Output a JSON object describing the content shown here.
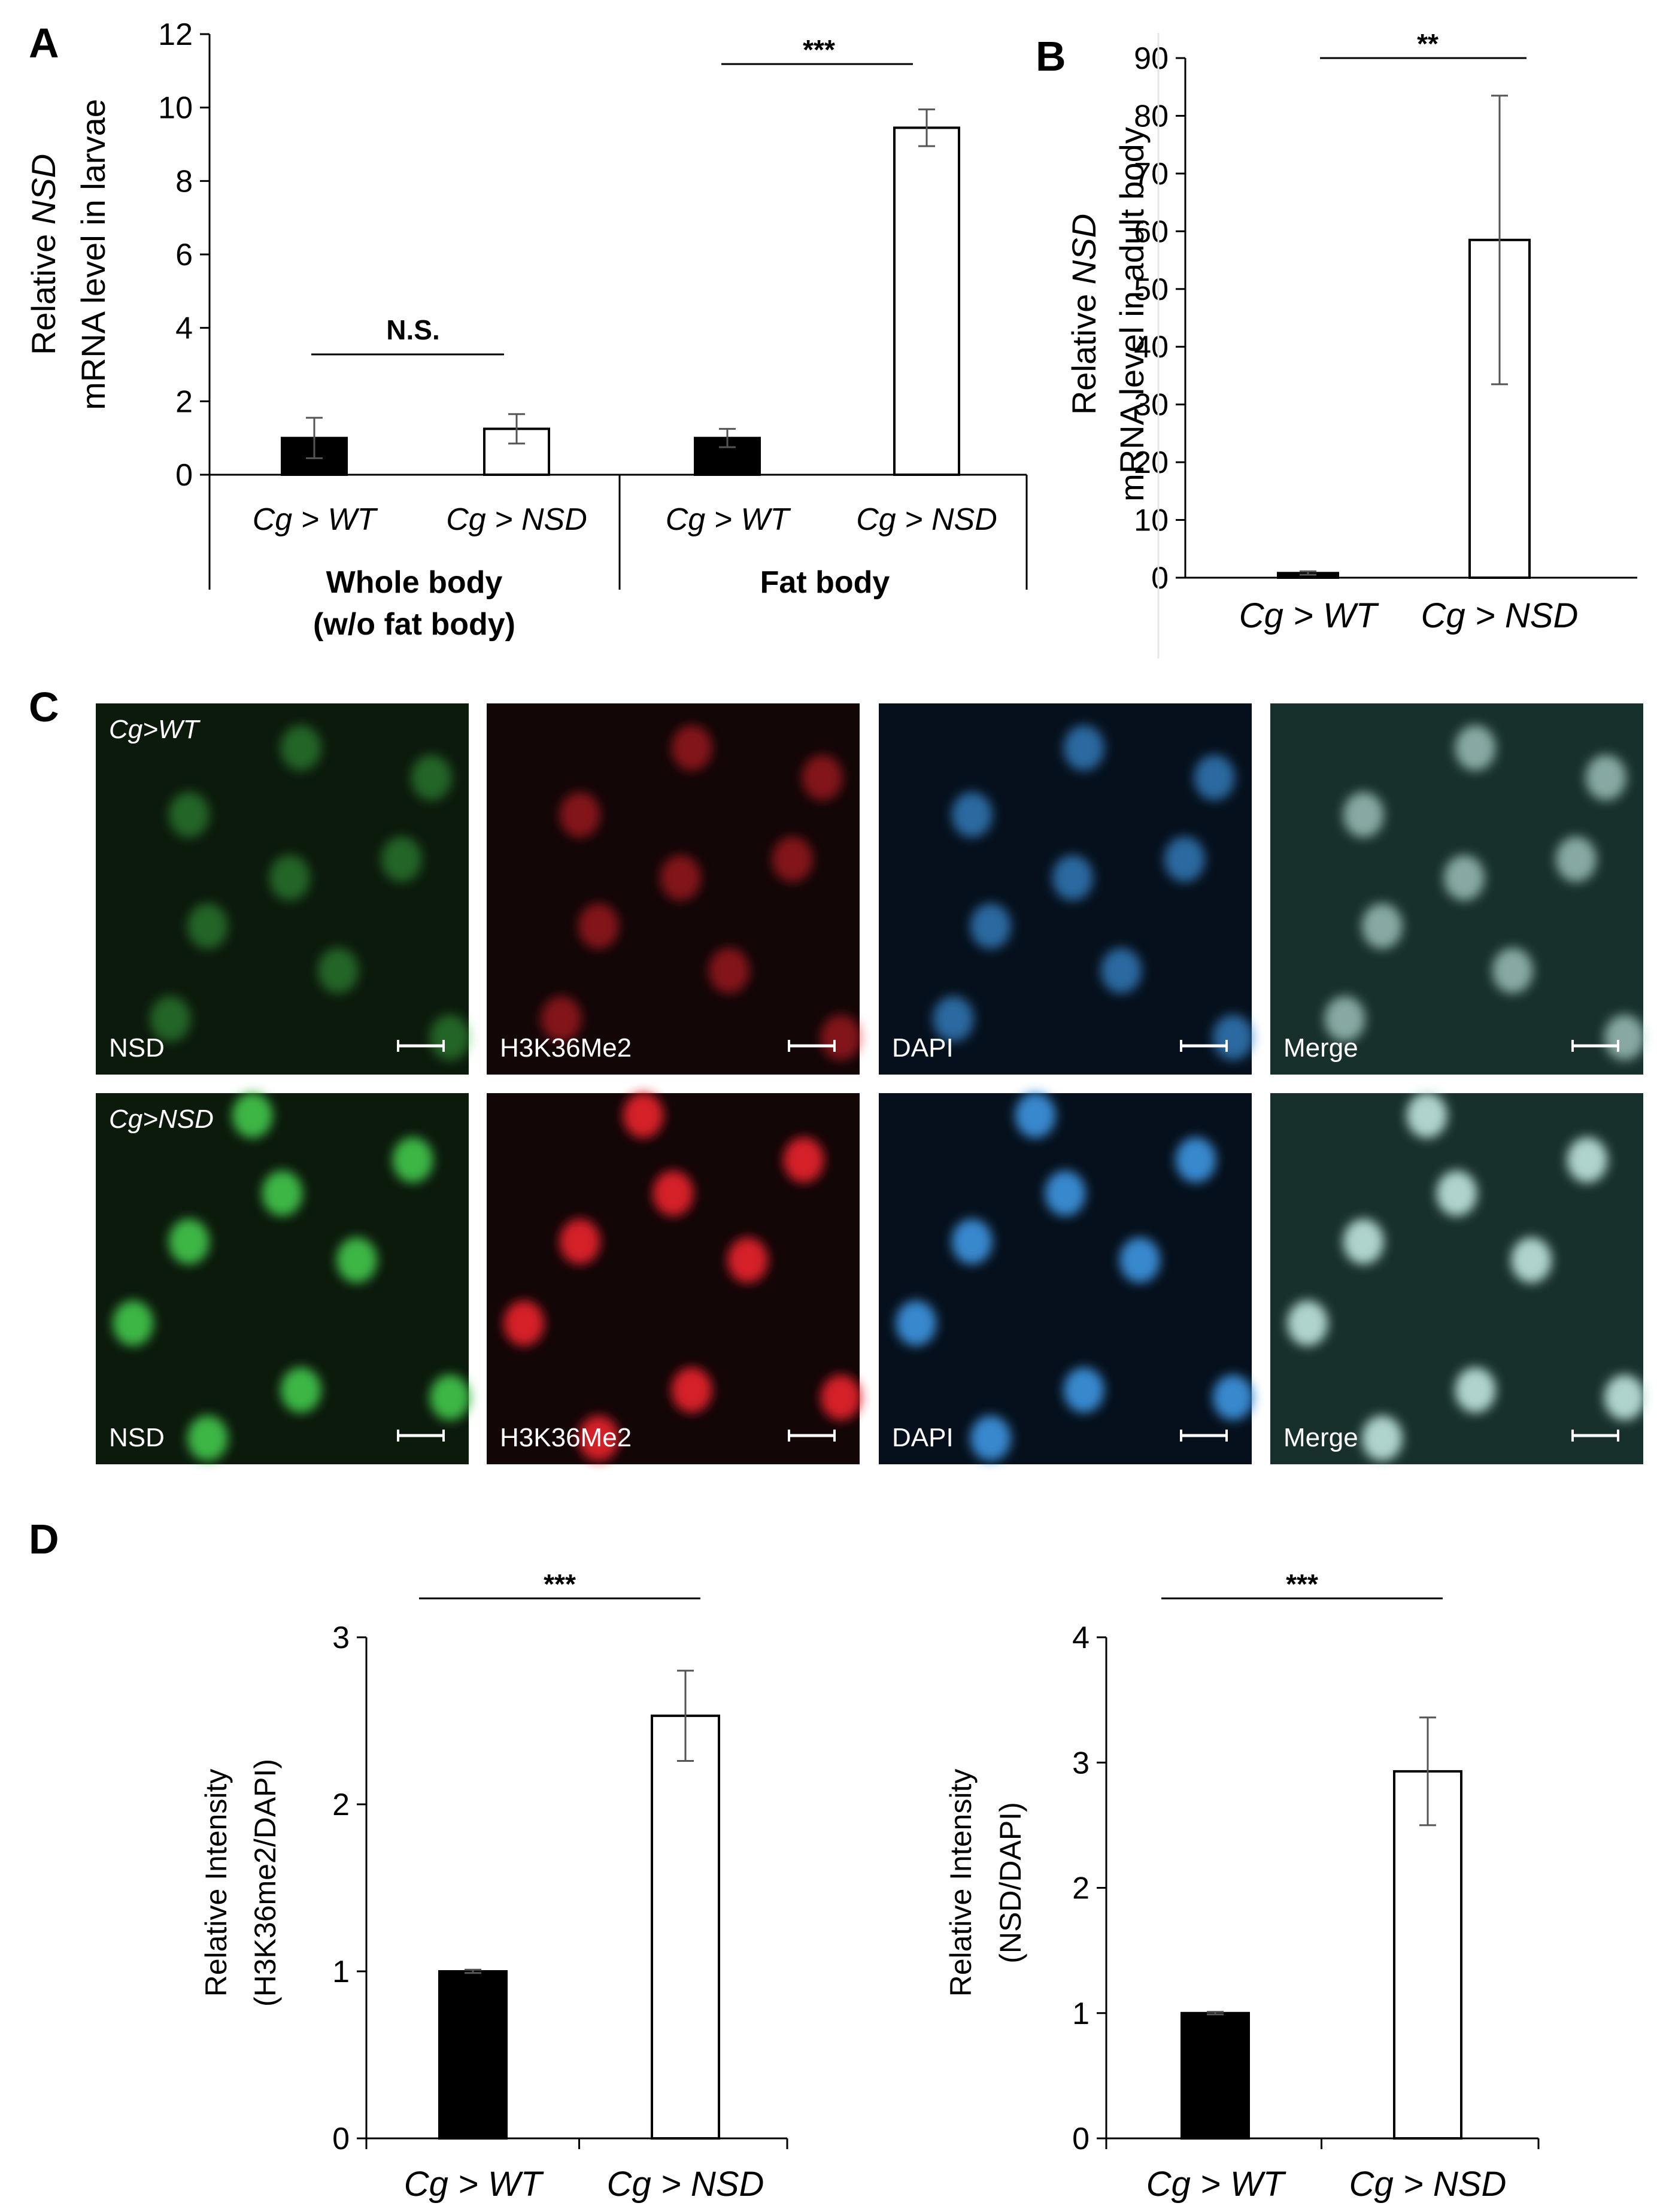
{
  "panels": {
    "A": "A",
    "B": "B",
    "C": "C",
    "D": "D"
  },
  "chart_data": [
    {
      "id": "A",
      "type": "bar",
      "ylabel_pre": "Relative ",
      "ylabel_italic": "NSD",
      "ylabel_line2": "mRNA level in larvae",
      "ylim": [
        0,
        12
      ],
      "yticks": [
        "0",
        "2",
        "4",
        "6",
        "8",
        "10",
        "12"
      ],
      "categories": [
        "Cg > WT",
        "Cg > NSD",
        "Cg > WT",
        "Cg > NSD"
      ],
      "groups": [
        {
          "label_lines": [
            "Whole body",
            "(w/o fat body)"
          ]
        },
        {
          "label_lines": [
            "Fat body"
          ]
        }
      ],
      "values": [
        1.0,
        1.25,
        1.0,
        9.45
      ],
      "errors": [
        0.55,
        0.4,
        0.25,
        0.5
      ],
      "colors": [
        "#000000",
        "#ffffff",
        "#000000",
        "#ffffff"
      ],
      "significance": [
        {
          "label": "N.S.",
          "between": [
            0,
            1
          ]
        },
        {
          "label": "***",
          "between": [
            2,
            3
          ]
        }
      ]
    },
    {
      "id": "B",
      "type": "bar",
      "ylabel_pre": "Relative ",
      "ylabel_italic": "NSD",
      "ylabel_line2": "mRNA level in adult body",
      "ylim": [
        0,
        90
      ],
      "yticks": [
        "0",
        "10",
        "20",
        "30",
        "40",
        "50",
        "60",
        "70",
        "80",
        "90"
      ],
      "categories": [
        "Cg > WT",
        "Cg > NSD"
      ],
      "values": [
        0.8,
        58.5
      ],
      "errors": [
        0.3,
        25.0
      ],
      "colors": [
        "#000000",
        "#ffffff"
      ],
      "significance": [
        {
          "label": "**",
          "between": [
            0,
            1
          ]
        }
      ]
    },
    {
      "id": "D1",
      "type": "bar",
      "ylabel_line1": "Relative Intensity",
      "ylabel_line2": "(H3K36me2/DAPI)",
      "ylim": [
        0,
        3
      ],
      "yticks": [
        "0",
        "1",
        "2",
        "3"
      ],
      "categories": [
        "Cg > WT",
        "Cg > NSD"
      ],
      "values": [
        1.0,
        2.53
      ],
      "errors": [
        0.01,
        0.27
      ],
      "colors": [
        "#000000",
        "#ffffff"
      ],
      "significance": [
        {
          "label": "***",
          "between": [
            0,
            1
          ]
        }
      ]
    },
    {
      "id": "D2",
      "type": "bar",
      "ylabel_line1": "Relative Intensity",
      "ylabel_line2": "(NSD/DAPI)",
      "ylim": [
        0,
        4
      ],
      "yticks": [
        "0",
        "1",
        "2",
        "3",
        "4"
      ],
      "categories": [
        "Cg > WT",
        "Cg > NSD"
      ],
      "values": [
        1.0,
        2.93
      ],
      "errors": [
        0.01,
        0.43
      ],
      "colors": [
        "#000000",
        "#ffffff"
      ],
      "significance": [
        {
          "label": "***",
          "between": [
            0,
            1
          ]
        }
      ]
    }
  ],
  "micrographs": {
    "rows": [
      {
        "genotype": "Cg>WT",
        "condition": "wt"
      },
      {
        "genotype": "Cg>NSD",
        "condition": "nsd"
      }
    ],
    "channels": [
      {
        "label": "NSD",
        "color": "#3fbf4a"
      },
      {
        "label": "H3K36Me2",
        "color": "#e0202a"
      },
      {
        "label": "DAPI",
        "color": "#3b8fd8"
      },
      {
        "label": "Merge",
        "color": "#b8ddd6"
      }
    ]
  }
}
